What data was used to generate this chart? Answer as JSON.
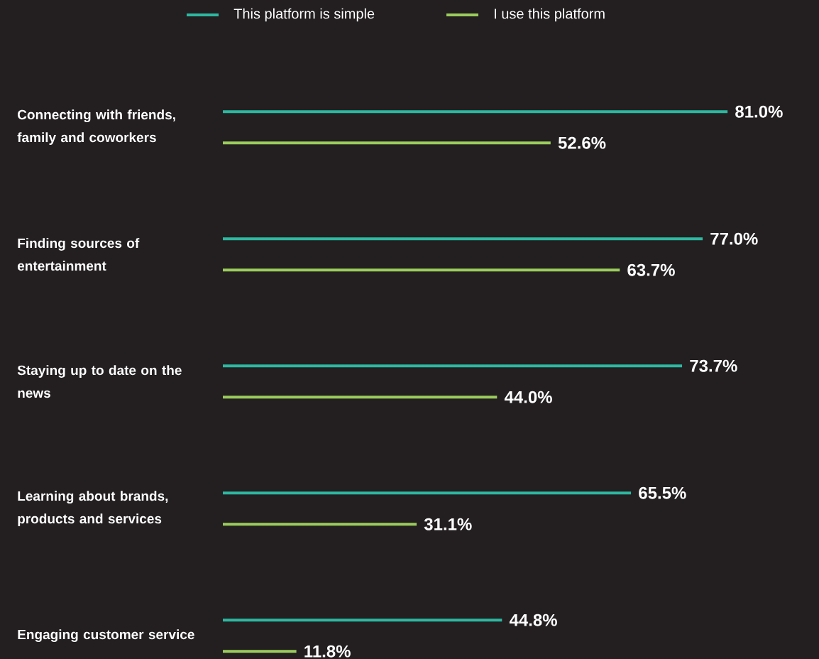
{
  "chart_data": {
    "type": "bar",
    "orientation": "horizontal",
    "legend": "top",
    "categories": [
      "Connecting with friends, family and coworkers",
      "Finding sources of entertainment",
      "Staying up to date on the news",
      "Learning about brands, products and services",
      "Engaging customer service"
    ],
    "series": [
      {
        "name": "This platform is simple",
        "color": "#2db8a1",
        "values": [
          81.0,
          77.0,
          73.7,
          65.5,
          44.8
        ],
        "value_labels": [
          "81.0%",
          "77.0%",
          "73.7%",
          "65.5%",
          "44.8%"
        ]
      },
      {
        "name": "I use this platform",
        "color": "#9bcc5c",
        "values": [
          52.6,
          63.7,
          44.0,
          31.1,
          11.8
        ],
        "value_labels": [
          "52.6%",
          "63.7%",
          "44.0%",
          "31.1%",
          "11.8%"
        ]
      }
    ]
  }
}
